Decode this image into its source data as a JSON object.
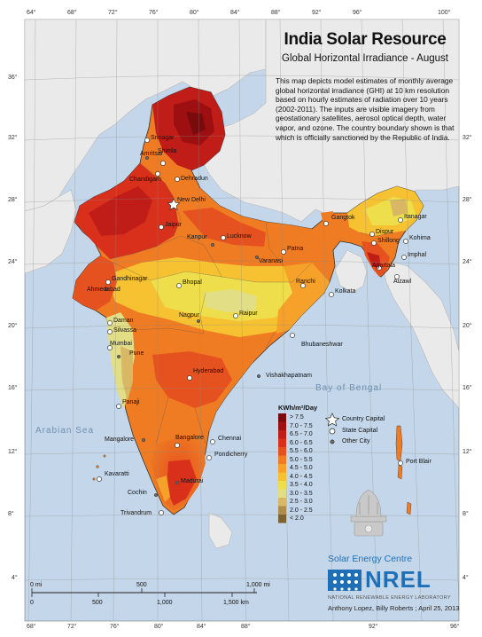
{
  "title": "India Solar Resource",
  "subtitle": "Global Horizontal Irradiance - August",
  "description": "This map depicts model estimates of monthly average global horizontal irradiance (GHI) at 10 km resolution based on hourly estimates of radiation over 10 years (2002-2011). The inputs are visible imagery from geostationary satellites, aerosol optical depth, water vapor, and ozone. The country boundary shown is that which is officially sanctioned by the Republic of India.",
  "seas": [
    "Arabian Sea",
    "Bay of Bengal"
  ],
  "graticule": {
    "longitudes_top": [
      "64°",
      "68°",
      "72°",
      "76°",
      "80°",
      "84°",
      "88°",
      "92°",
      "96°",
      "100°"
    ],
    "longitudes_bottom": [
      "68°",
      "72°",
      "76°",
      "80°",
      "84°",
      "88°",
      "92°",
      "96°"
    ],
    "latitudes": [
      "36°",
      "32°",
      "28°",
      "24°",
      "20°",
      "16°",
      "12°",
      "8°",
      "4°"
    ]
  },
  "legend": {
    "title": "KWh/m²/Day",
    "classes": [
      {
        "label": "> 7.5",
        "color": "#7a0a0c"
      },
      {
        "label": "7.0 - 7.5",
        "color": "#9e0f12"
      },
      {
        "label": "6.5 - 7.0",
        "color": "#c01d18"
      },
      {
        "label": "6.0 - 6.5",
        "color": "#d9301c"
      },
      {
        "label": "5.5 - 6.0",
        "color": "#e6521f"
      },
      {
        "label": "5.0 - 5.5",
        "color": "#ef7b22"
      },
      {
        "label": "4.5 - 5.0",
        "color": "#f5a12a"
      },
      {
        "label": "4.0 - 4.5",
        "color": "#f6c232"
      },
      {
        "label": "3.5 - 4.0",
        "color": "#eede4c"
      },
      {
        "label": "3.0 - 3.5",
        "color": "#e2de86"
      },
      {
        "label": "2.5 - 3.0",
        "color": "#d8b864"
      },
      {
        "label": "2.0 - 2.5",
        "color": "#b08c4c"
      },
      {
        "label": "< 2.0",
        "color": "#7e6234"
      }
    ],
    "symbols": [
      {
        "label": "Country Capital",
        "icon": "star-icon"
      },
      {
        "label": "State Capital",
        "icon": "circle-icon"
      },
      {
        "label": "Other City",
        "icon": "dot-icon"
      }
    ]
  },
  "cities": [
    {
      "name": "Srinagar",
      "type": "state"
    },
    {
      "name": "Shimla",
      "type": "state"
    },
    {
      "name": "Amritsar",
      "type": "other"
    },
    {
      "name": "Chandigarh",
      "type": "state"
    },
    {
      "name": "Dehradun",
      "type": "state"
    },
    {
      "name": "New Delhi",
      "type": "country"
    },
    {
      "name": "Jaipur",
      "type": "state"
    },
    {
      "name": "Lucknow",
      "type": "state"
    },
    {
      "name": "Kanpur",
      "type": "other"
    },
    {
      "name": "Patna",
      "type": "state"
    },
    {
      "name": "Varanasi",
      "type": "other"
    },
    {
      "name": "Gangtok",
      "type": "state"
    },
    {
      "name": "Itanagar",
      "type": "state"
    },
    {
      "name": "Dispur",
      "type": "state"
    },
    {
      "name": "Shillong",
      "type": "state"
    },
    {
      "name": "Kohima",
      "type": "state"
    },
    {
      "name": "Imphal",
      "type": "state"
    },
    {
      "name": "Agartala",
      "type": "state"
    },
    {
      "name": "Aizawl",
      "type": "state"
    },
    {
      "name": "Gandhinagar",
      "type": "state"
    },
    {
      "name": "Ahmedabad",
      "type": "other"
    },
    {
      "name": "Bhopal",
      "type": "state"
    },
    {
      "name": "Ranchi",
      "type": "state"
    },
    {
      "name": "Kolkata",
      "type": "state"
    },
    {
      "name": "Daman",
      "type": "state"
    },
    {
      "name": "Silvassa",
      "type": "state"
    },
    {
      "name": "Nagpur",
      "type": "other"
    },
    {
      "name": "Raipur",
      "type": "state"
    },
    {
      "name": "Bhubaneshwar",
      "type": "state"
    },
    {
      "name": "Mumbai",
      "type": "state"
    },
    {
      "name": "Pune",
      "type": "other"
    },
    {
      "name": "Hyderabad",
      "type": "state"
    },
    {
      "name": "Vishakhapatnam",
      "type": "other"
    },
    {
      "name": "Panaji",
      "type": "state"
    },
    {
      "name": "Mangalore",
      "type": "other"
    },
    {
      "name": "Bangalore",
      "type": "state"
    },
    {
      "name": "Chennai",
      "type": "state"
    },
    {
      "name": "Pondicherry",
      "type": "state"
    },
    {
      "name": "Kavaratti",
      "type": "state"
    },
    {
      "name": "Cochin",
      "type": "other"
    },
    {
      "name": "Madurai",
      "type": "other"
    },
    {
      "name": "Trivandrum",
      "type": "state"
    },
    {
      "name": "Port Blair",
      "type": "state"
    }
  ],
  "scalebar": {
    "miles": [
      "0 mi",
      "500",
      "1,000 mi"
    ],
    "km": [
      "0",
      "500",
      "1,000",
      "1,500 km"
    ]
  },
  "credits": {
    "org": "Solar Energy Centre",
    "logo": "NREL",
    "lab": "NATIONAL RENEWABLE ENERGY LABORATORY",
    "authors": "Anthony Lopez, Billy Roberts ; April 25, 2013"
  }
}
